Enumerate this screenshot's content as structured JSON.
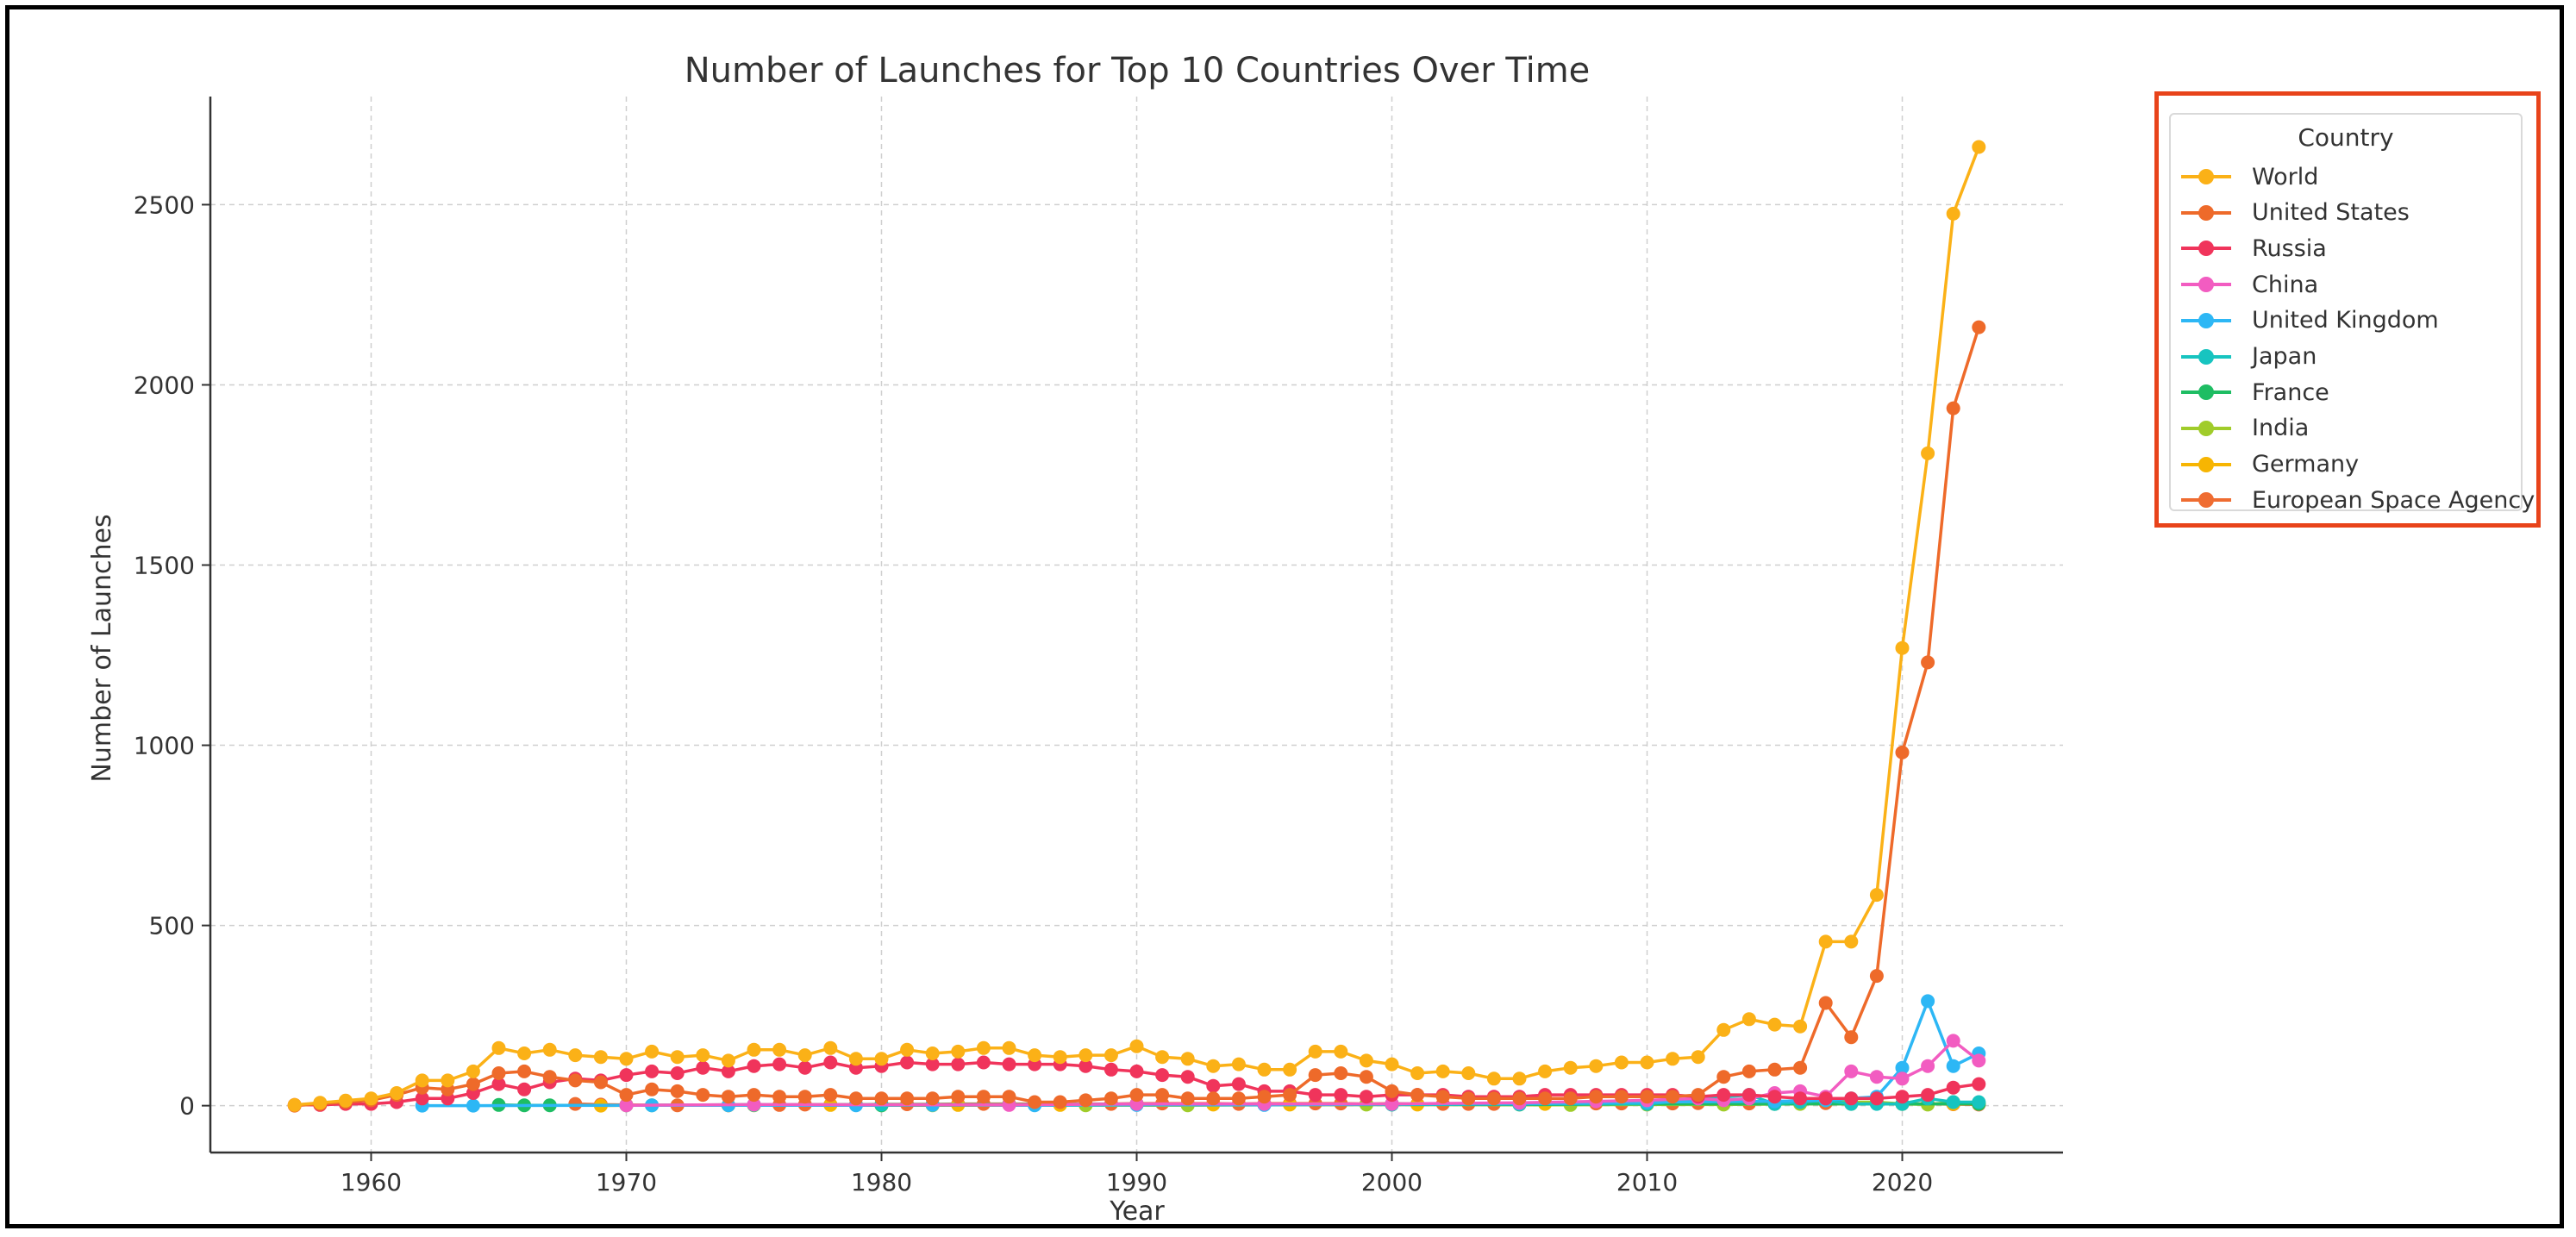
{
  "chart_data": {
    "type": "line",
    "title": "Number of Launches for Top 10 Countries Over Time",
    "xlabel": "Year",
    "ylabel": "Number of Launches",
    "xlim": [
      1953.7,
      2026.3
    ],
    "ylim": [
      -130,
      2800
    ],
    "xticks": [
      1960,
      1970,
      1980,
      1990,
      2000,
      2010,
      2020
    ],
    "yticks": [
      0,
      500,
      1000,
      1500,
      2000,
      2500
    ],
    "grid": true,
    "legend": {
      "title": "Country",
      "placement": "outside-right"
    },
    "series": [
      {
        "name": "World",
        "color": "#fbb117",
        "x": [
          1957,
          1958,
          1959,
          1960,
          1961,
          1962,
          1963,
          1964,
          1965,
          1966,
          1967,
          1968,
          1969,
          1970,
          1971,
          1972,
          1973,
          1974,
          1975,
          1976,
          1977,
          1978,
          1979,
          1980,
          1981,
          1982,
          1983,
          1984,
          1985,
          1986,
          1987,
          1988,
          1989,
          1990,
          1991,
          1992,
          1993,
          1994,
          1995,
          1996,
          1997,
          1998,
          1999,
          2000,
          2001,
          2002,
          2003,
          2004,
          2005,
          2006,
          2007,
          2008,
          2009,
          2010,
          2011,
          2012,
          2013,
          2014,
          2015,
          2016,
          2017,
          2018,
          2019,
          2020,
          2021,
          2022,
          2023
        ],
        "y": [
          2,
          8,
          14,
          20,
          35,
          70,
          70,
          95,
          160,
          145,
          155,
          140,
          135,
          130,
          150,
          135,
          140,
          125,
          155,
          155,
          140,
          160,
          130,
          130,
          155,
          145,
          150,
          160,
          160,
          140,
          135,
          140,
          140,
          165,
          135,
          130,
          110,
          115,
          100,
          100,
          150,
          150,
          125,
          115,
          90,
          95,
          90,
          75,
          75,
          95,
          105,
          110,
          120,
          120,
          130,
          135,
          210,
          240,
          225,
          220,
          455,
          455,
          585,
          1270,
          1810,
          2475,
          2660
        ]
      },
      {
        "name": "United States",
        "color": "#ee6a2a",
        "x": [
          1957,
          1958,
          1959,
          1960,
          1961,
          1962,
          1963,
          1964,
          1965,
          1966,
          1967,
          1968,
          1969,
          1970,
          1971,
          1972,
          1973,
          1974,
          1975,
          1976,
          1977,
          1978,
          1979,
          1980,
          1981,
          1982,
          1983,
          1984,
          1985,
          1986,
          1987,
          1988,
          1989,
          1990,
          1991,
          1992,
          1993,
          1994,
          1995,
          1996,
          1997,
          1998,
          1999,
          2000,
          2001,
          2002,
          2003,
          2004,
          2005,
          2006,
          2007,
          2008,
          2009,
          2010,
          2011,
          2012,
          2013,
          2014,
          2015,
          2016,
          2017,
          2018,
          2019,
          2020,
          2021,
          2022,
          2023
        ],
        "y": [
          0,
          5,
          10,
          15,
          30,
          50,
          45,
          60,
          90,
          95,
          80,
          70,
          65,
          30,
          45,
          40,
          30,
          25,
          30,
          25,
          25,
          30,
          20,
          20,
          20,
          20,
          25,
          25,
          25,
          10,
          10,
          15,
          20,
          30,
          30,
          20,
          20,
          20,
          25,
          30,
          85,
          90,
          80,
          40,
          30,
          25,
          20,
          20,
          20,
          20,
          20,
          25,
          25,
          25,
          25,
          30,
          80,
          95,
          100,
          105,
          285,
          190,
          360,
          980,
          1230,
          1935,
          2160
        ]
      },
      {
        "name": "Russia",
        "color": "#f0345b",
        "x": [
          1957,
          1958,
          1959,
          1960,
          1961,
          1962,
          1963,
          1964,
          1965,
          1966,
          1967,
          1968,
          1969,
          1970,
          1971,
          1972,
          1973,
          1974,
          1975,
          1976,
          1977,
          1978,
          1979,
          1980,
          1981,
          1982,
          1983,
          1984,
          1985,
          1986,
          1987,
          1988,
          1989,
          1990,
          1991,
          1992,
          1993,
          1994,
          1995,
          1996,
          1997,
          1998,
          1999,
          2000,
          2001,
          2002,
          2003,
          2004,
          2005,
          2006,
          2007,
          2008,
          2009,
          2010,
          2011,
          2012,
          2013,
          2014,
          2015,
          2016,
          2017,
          2018,
          2019,
          2020,
          2021,
          2022,
          2023
        ],
        "y": [
          2,
          2,
          5,
          5,
          10,
          20,
          20,
          35,
          60,
          45,
          65,
          75,
          70,
          85,
          95,
          90,
          105,
          95,
          110,
          115,
          105,
          120,
          105,
          110,
          120,
          115,
          115,
          120,
          115,
          115,
          115,
          110,
          100,
          95,
          85,
          80,
          55,
          60,
          40,
          40,
          30,
          30,
          25,
          30,
          30,
          30,
          25,
          25,
          25,
          30,
          30,
          30,
          30,
          30,
          30,
          25,
          30,
          30,
          25,
          20,
          20,
          20,
          20,
          25,
          30,
          50,
          60
        ]
      },
      {
        "name": "China",
        "color": "#f25cc1",
        "x": [
          1970,
          1975,
          1985,
          1990,
          1995,
          2000,
          2005,
          2008,
          2010,
          2012,
          2013,
          2014,
          2015,
          2016,
          2017,
          2018,
          2019,
          2020,
          2021,
          2022,
          2023
        ],
        "y": [
          1,
          3,
          2,
          5,
          5,
          5,
          8,
          12,
          15,
          20,
          15,
          20,
          35,
          40,
          25,
          95,
          80,
          75,
          110,
          180,
          125
        ]
      },
      {
        "name": "United Kingdom",
        "color": "#2db7f5",
        "x": [
          1962,
          1964,
          1971,
          1974,
          1979,
          1982,
          1986,
          1990,
          1995,
          2000,
          2005,
          2010,
          2015,
          2017,
          2018,
          2019,
          2020,
          2021,
          2022,
          2023
        ],
        "y": [
          0,
          0,
          1,
          1,
          1,
          2,
          1,
          2,
          2,
          5,
          5,
          10,
          12,
          15,
          20,
          25,
          105,
          290,
          110,
          145
        ]
      },
      {
        "name": "Japan",
        "color": "#17c4c0",
        "x": [
          1970,
          1975,
          1980,
          1985,
          1990,
          1995,
          2000,
          2005,
          2010,
          2014,
          2015,
          2016,
          2017,
          2018,
          2019,
          2020,
          2021,
          2022,
          2023
        ],
        "y": [
          1,
          2,
          3,
          3,
          5,
          3,
          3,
          5,
          5,
          30,
          5,
          10,
          15,
          5,
          5,
          5,
          20,
          10,
          10
        ]
      },
      {
        "name": "France",
        "color": "#1ebd63",
        "x": [
          1965,
          1966,
          1967,
          1971,
          1975,
          1980,
          1986,
          1990,
          1995,
          2000,
          2005,
          2010,
          2015,
          2020,
          2023
        ],
        "y": [
          2,
          1,
          1,
          1,
          3,
          1,
          2,
          3,
          3,
          3,
          3,
          5,
          5,
          5,
          5
        ]
      },
      {
        "name": "India",
        "color": "#a0cc2a",
        "x": [
          1975,
          1980,
          1982,
          1988,
          1992,
          1999,
          2007,
          2010,
          2013,
          2016,
          2017,
          2018,
          2019,
          2020,
          2021,
          2022,
          2023
        ],
        "y": [
          1,
          1,
          1,
          1,
          1,
          3,
          2,
          3,
          3,
          5,
          15,
          10,
          10,
          5,
          3,
          10,
          8
        ]
      },
      {
        "name": "Germany",
        "color": "#f7b502",
        "x": [
          1969,
          1970,
          1974,
          1975,
          1978,
          1980,
          1983,
          1987,
          1990,
          1993,
          1996,
          2001,
          2006,
          2007,
          2010,
          2015,
          2018,
          2020,
          2022,
          2023
        ],
        "y": [
          0,
          1,
          1,
          2,
          2,
          3,
          2,
          2,
          3,
          3,
          3,
          3,
          5,
          5,
          5,
          5,
          5,
          5,
          5,
          5
        ]
      },
      {
        "name": "European Space Agency",
        "color": "#ef6c31",
        "x": [
          1968,
          1969,
          1970,
          1972,
          1974,
          1975,
          1976,
          1977,
          1978,
          1979,
          1980,
          1981,
          1982,
          1983,
          1984,
          1985,
          1986,
          1987,
          1988,
          1989,
          1990,
          1991,
          1992,
          1993,
          1994,
          1995,
          1996,
          1997,
          1998,
          1999,
          2000,
          2001,
          2002,
          2003,
          2004,
          2005,
          2006,
          2007,
          2008,
          2009,
          2010,
          2011,
          2012,
          2013,
          2014,
          2015,
          2016,
          2017,
          2018,
          2019,
          2020,
          2021,
          2022,
          2023
        ],
        "y": [
          5,
          3,
          2,
          1,
          1,
          2,
          2,
          3,
          3,
          3,
          4,
          4,
          4,
          5,
          5,
          5,
          5,
          3,
          5,
          5,
          6,
          6,
          6,
          6,
          5,
          6,
          6,
          6,
          6,
          5,
          6,
          5,
          5,
          5,
          5,
          6,
          6,
          6,
          6,
          6,
          6,
          6,
          7,
          6,
          6,
          6,
          6,
          7,
          6,
          6,
          5,
          5,
          4,
          3
        ]
      }
    ]
  }
}
